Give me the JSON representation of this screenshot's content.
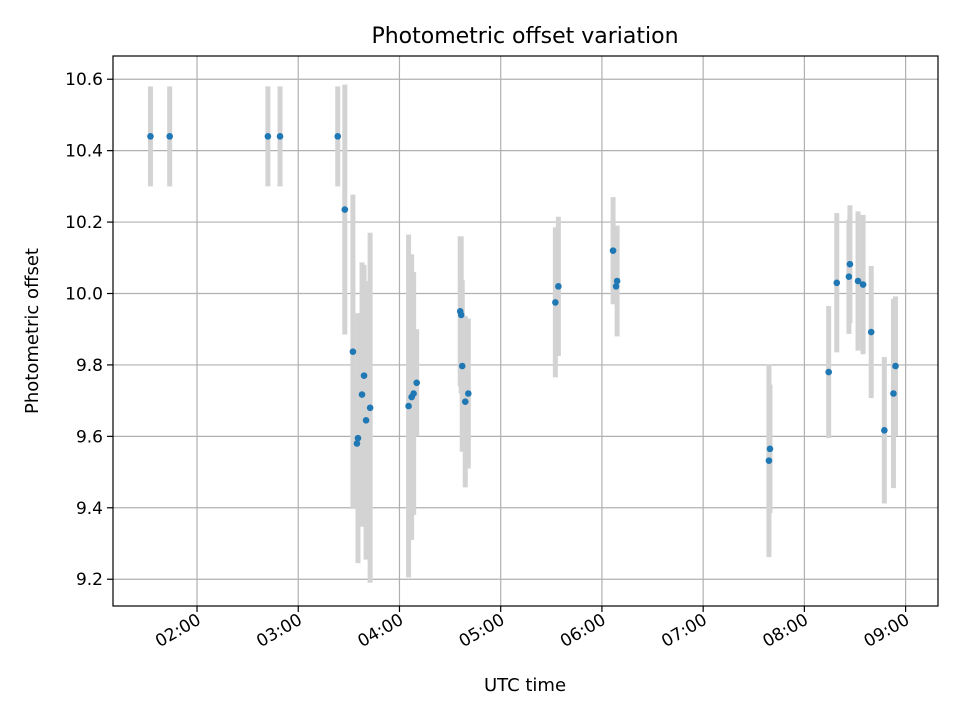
{
  "chart_data": {
    "type": "scatter",
    "title": "Photometric offset variation",
    "xlabel": "UTC time",
    "ylabel": "Photometric offset",
    "x_unit": "hours UTC",
    "xlim": [
      1.17,
      9.32
    ],
    "ylim": [
      9.125,
      10.665
    ],
    "x_ticks": [
      {
        "value": 2,
        "label": "02:00"
      },
      {
        "value": 3,
        "label": "03:00"
      },
      {
        "value": 4,
        "label": "04:00"
      },
      {
        "value": 5,
        "label": "05:00"
      },
      {
        "value": 6,
        "label": "06:00"
      },
      {
        "value": 7,
        "label": "07:00"
      },
      {
        "value": 8,
        "label": "08:00"
      },
      {
        "value": 9,
        "label": "09:00"
      }
    ],
    "y_ticks": [
      {
        "value": 9.2,
        "label": "9.2"
      },
      {
        "value": 9.4,
        "label": "9.4"
      },
      {
        "value": 9.6,
        "label": "9.6"
      },
      {
        "value": 9.8,
        "label": "9.8"
      },
      {
        "value": 10.0,
        "label": "10.0"
      },
      {
        "value": 10.2,
        "label": "10.2"
      },
      {
        "value": 10.4,
        "label": "10.4"
      },
      {
        "value": 10.6,
        "label": "10.6"
      }
    ],
    "grid": true,
    "marker_color": "#1f77b4",
    "errorbar_color": "#d3d3d3",
    "points": [
      {
        "x": 1.54,
        "y": 10.44,
        "yerr": 0.14
      },
      {
        "x": 1.73,
        "y": 10.44,
        "yerr": 0.14
      },
      {
        "x": 2.7,
        "y": 10.44,
        "yerr": 0.14
      },
      {
        "x": 2.82,
        "y": 10.44,
        "yerr": 0.14
      },
      {
        "x": 3.39,
        "y": 10.44,
        "yerr": 0.14
      },
      {
        "x": 3.46,
        "y": 10.235,
        "yerr": 0.35
      },
      {
        "x": 3.54,
        "y": 9.837,
        "yerr": 0.44
      },
      {
        "x": 3.58,
        "y": 9.58,
        "yerr": 0.18
      },
      {
        "x": 3.59,
        "y": 9.595,
        "yerr": 0.35
      },
      {
        "x": 3.63,
        "y": 9.717,
        "yerr": 0.37
      },
      {
        "x": 3.65,
        "y": 9.77,
        "yerr": 0.31
      },
      {
        "x": 3.67,
        "y": 9.645,
        "yerr": 0.39
      },
      {
        "x": 3.71,
        "y": 9.68,
        "yerr": 0.49
      },
      {
        "x": 4.09,
        "y": 9.685,
        "yerr": 0.48
      },
      {
        "x": 4.12,
        "y": 9.71,
        "yerr": 0.4
      },
      {
        "x": 4.14,
        "y": 9.72,
        "yerr": 0.34
      },
      {
        "x": 4.17,
        "y": 9.75,
        "yerr": 0.15
      },
      {
        "x": 4.6,
        "y": 9.95,
        "yerr": 0.21
      },
      {
        "x": 4.61,
        "y": 9.94,
        "yerr": 0.22
      },
      {
        "x": 4.62,
        "y": 9.797,
        "yerr": 0.24
      },
      {
        "x": 4.65,
        "y": 9.697,
        "yerr": 0.24
      },
      {
        "x": 4.68,
        "y": 9.72,
        "yerr": 0.21
      },
      {
        "x": 5.54,
        "y": 9.975,
        "yerr": 0.21
      },
      {
        "x": 5.57,
        "y": 10.02,
        "yerr": 0.195
      },
      {
        "x": 6.11,
        "y": 10.12,
        "yerr": 0.15
      },
      {
        "x": 6.14,
        "y": 10.02,
        "yerr": 0.05
      },
      {
        "x": 6.15,
        "y": 10.035,
        "yerr": 0.155
      },
      {
        "x": 7.65,
        "y": 9.532,
        "yerr": 0.27
      },
      {
        "x": 7.66,
        "y": 9.565,
        "yerr": 0.18
      },
      {
        "x": 8.24,
        "y": 9.78,
        "yerr": 0.185
      },
      {
        "x": 8.32,
        "y": 10.03,
        "yerr": 0.195
      },
      {
        "x": 8.44,
        "y": 10.047,
        "yerr": 0.16
      },
      {
        "x": 8.45,
        "y": 10.082,
        "yerr": 0.165
      },
      {
        "x": 8.53,
        "y": 10.035,
        "yerr": 0.195
      },
      {
        "x": 8.58,
        "y": 10.025,
        "yerr": 0.195
      },
      {
        "x": 8.66,
        "y": 9.892,
        "yerr": 0.185
      },
      {
        "x": 8.79,
        "y": 9.617,
        "yerr": 0.205
      },
      {
        "x": 8.88,
        "y": 9.72,
        "yerr": 0.265
      },
      {
        "x": 8.9,
        "y": 9.797,
        "yerr": 0.195
      }
    ]
  }
}
